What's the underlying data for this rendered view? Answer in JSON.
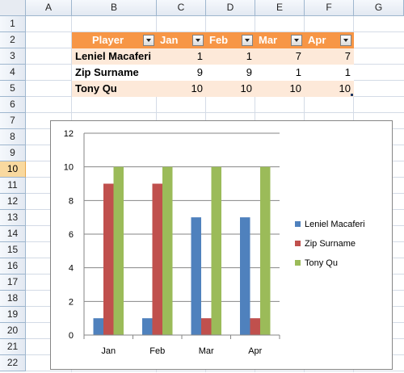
{
  "columns": [
    "A",
    "B",
    "C",
    "D",
    "E",
    "F",
    "G"
  ],
  "rows": [
    "1",
    "2",
    "3",
    "4",
    "5",
    "6",
    "7",
    "8",
    "9",
    "10",
    "11",
    "12",
    "13",
    "14",
    "15",
    "16",
    "17",
    "18",
    "19",
    "20",
    "21",
    "22"
  ],
  "selected_row": "10",
  "table": {
    "headers": [
      "Player",
      "Jan",
      "Feb",
      "Mar",
      "Apr"
    ],
    "rows": [
      {
        "player": "Leniel Macaferi",
        "values": [
          "1",
          "1",
          "7",
          "7"
        ]
      },
      {
        "player": "Zip Surname",
        "values": [
          "9",
          "9",
          "1",
          "1"
        ]
      },
      {
        "player": "Tony Qu",
        "values": [
          "10",
          "10",
          "10",
          "10"
        ]
      }
    ]
  },
  "colors": {
    "header": "#f79646",
    "band": "#fde9d9",
    "series1": "#4f81bd",
    "series2": "#c0504d",
    "series3": "#9bbb59"
  },
  "chart_data": {
    "type": "bar",
    "categories": [
      "Jan",
      "Feb",
      "Mar",
      "Apr"
    ],
    "series": [
      {
        "name": "Leniel Macaferi",
        "values": [
          1,
          1,
          7,
          7
        ]
      },
      {
        "name": "Zip Surname",
        "values": [
          9,
          9,
          1,
          1
        ]
      },
      {
        "name": "Tony Qu",
        "values": [
          10,
          10,
          10,
          10
        ]
      }
    ],
    "ylim": [
      0,
      12
    ],
    "yticks": [
      "0",
      "2",
      "4",
      "6",
      "8",
      "10",
      "12"
    ],
    "grid": true,
    "legend": "right"
  }
}
